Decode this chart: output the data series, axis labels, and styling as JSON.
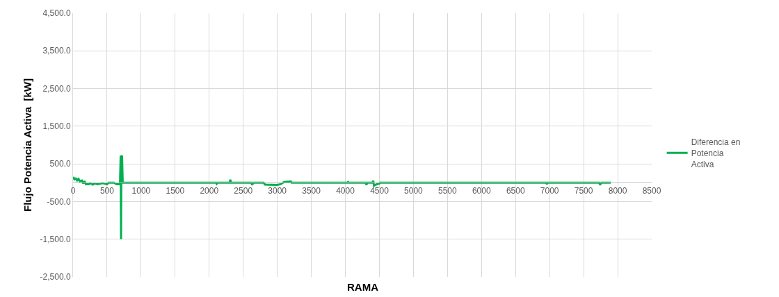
{
  "chart_data": {
    "type": "line",
    "xlabel": "RAMA",
    "ylabel": "Flujo Potencia Activa  [kW]",
    "series": [
      {
        "name": "Diferencia en Potencia Activa",
        "color": "#00b050",
        "x": [
          0,
          10,
          20,
          40,
          60,
          80,
          100,
          130,
          150,
          170,
          190,
          230,
          250,
          290,
          320,
          360,
          400,
          430,
          500,
          520,
          600,
          640,
          680,
          690,
          700,
          705,
          710,
          720,
          730,
          2100,
          2110,
          2120,
          2300,
          2310,
          2320,
          2620,
          2630,
          2650,
          2800,
          2820,
          3000,
          3050,
          3100,
          3200,
          3210,
          4030,
          4040,
          4050,
          4300,
          4310,
          4320,
          4400,
          4410,
          4420,
          4450,
          4500,
          4510,
          6950,
          6960,
          6970,
          7730,
          7740,
          7760,
          7900
        ],
        "values": [
          120,
          130,
          90,
          110,
          60,
          100,
          40,
          60,
          -20,
          40,
          -40,
          -40,
          -10,
          -50,
          -20,
          -40,
          -30,
          -10,
          -40,
          0,
          0,
          -40,
          -40,
          0,
          720,
          -1500,
          720,
          700,
          0,
          0,
          -30,
          0,
          0,
          80,
          0,
          0,
          -60,
          0,
          0,
          -50,
          -60,
          -40,
          20,
          30,
          0,
          0,
          20,
          0,
          0,
          -60,
          0,
          0,
          50,
          -80,
          -50,
          -20,
          0,
          0,
          -40,
          0,
          0,
          -60,
          0,
          0
        ]
      }
    ],
    "xlim": [
      0,
      8500
    ],
    "xticks": [
      0,
      500,
      1000,
      1500,
      2000,
      2500,
      3000,
      3500,
      4000,
      4500,
      5000,
      5500,
      6000,
      6500,
      7000,
      7500,
      8000,
      8500
    ],
    "ylim": [
      -2500,
      4500
    ],
    "yticks": [
      {
        "value": 4500,
        "label": "4,500.0"
      },
      {
        "value": 3500,
        "label": "3,500.0"
      },
      {
        "value": 2500,
        "label": "2,500.0"
      },
      {
        "value": 1500,
        "label": "1,500.0"
      },
      {
        "value": 500,
        "label": "500.0"
      },
      {
        "value": -500,
        "label": "-500.0"
      },
      {
        "value": -1500,
        "label": "-1,500.0"
      },
      {
        "value": -2500,
        "label": "-2,500.0"
      }
    ],
    "grid": true,
    "legend": "right",
    "marker": "none",
    "line_style": "solid"
  }
}
